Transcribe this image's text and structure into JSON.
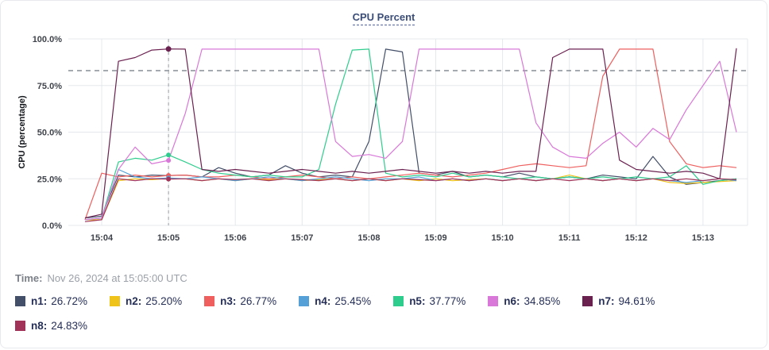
{
  "time": {
    "label": "Time:",
    "value": "Nov 26, 2024 at 15:05:00 UTC"
  },
  "legend": {
    "items": [
      {
        "label": "n1:",
        "value": "26.72%",
        "color": "#434e68"
      },
      {
        "label": "n2:",
        "value": "25.20%",
        "color": "#efc319"
      },
      {
        "label": "n3:",
        "value": "26.77%",
        "color": "#ee5f5e"
      },
      {
        "label": "n4:",
        "value": "25.45%",
        "color": "#55a1d7"
      },
      {
        "label": "n5:",
        "value": "37.77%",
        "color": "#2ecd8d"
      },
      {
        "label": "n6:",
        "value": "34.85%",
        "color": "#d978d8"
      },
      {
        "label": "n7:",
        "value": "94.61%",
        "color": "#6b2150"
      },
      {
        "label": "n8:",
        "value": "24.83%",
        "color": "#a13358"
      }
    ]
  },
  "chart_data": {
    "type": "line",
    "title": "CPU Percent",
    "xlabel": "",
    "ylabel": "CPU (percentage)",
    "ylim": [
      0,
      100
    ],
    "grid": true,
    "legend_position": "bottom",
    "yticks": [
      {
        "value": 0,
        "label": "0.0%"
      },
      {
        "value": 25,
        "label": "25.0%"
      },
      {
        "value": 50,
        "label": "50.0%"
      },
      {
        "value": 75,
        "label": "75.0%"
      },
      {
        "value": 100,
        "label": "100.0%"
      }
    ],
    "x_origin_label": "15:03:45",
    "sample_interval_seconds": 15,
    "x_domain_seconds": [
      -15,
      595
    ],
    "xticks": [
      {
        "t": 15,
        "label": "15:04"
      },
      {
        "t": 75,
        "label": "15:05"
      },
      {
        "t": 135,
        "label": "15:06"
      },
      {
        "t": 195,
        "label": "15:07"
      },
      {
        "t": 255,
        "label": "15:08"
      },
      {
        "t": 315,
        "label": "15:09"
      },
      {
        "t": 375,
        "label": "15:10"
      },
      {
        "t": 435,
        "label": "15:11"
      },
      {
        "t": 495,
        "label": "15:12"
      },
      {
        "t": 555,
        "label": "15:13"
      }
    ],
    "threshold_value": 83,
    "crosshair": {
      "t": 75,
      "index": 5,
      "label": "15:05:00"
    },
    "series": [
      {
        "name": "n1",
        "color": "#434e68",
        "values": [
          4,
          5,
          27,
          26,
          27,
          26.72,
          27,
          26,
          31,
          28,
          26,
          27,
          32,
          28,
          26,
          27,
          26,
          45,
          94.5,
          93,
          28,
          27,
          29,
          26,
          27,
          26,
          28,
          26,
          25,
          26,
          25,
          27,
          26,
          25,
          37,
          26,
          22,
          23,
          24,
          25
        ]
      },
      {
        "name": "n2",
        "color": "#efc319",
        "values": [
          3,
          3,
          24,
          25,
          24.5,
          25.2,
          25,
          24,
          25,
          24,
          25,
          24.5,
          25,
          24,
          24.5,
          25,
          24,
          25,
          24,
          25,
          24,
          25,
          24,
          24.5,
          25,
          24,
          25,
          24,
          25,
          27,
          25,
          24,
          25,
          24,
          25,
          23,
          22.5,
          23,
          23.5,
          24
        ]
      },
      {
        "name": "n3",
        "color": "#ee5f5e",
        "values": [
          3,
          28,
          26,
          27,
          26,
          26.77,
          27,
          26,
          26,
          27,
          26,
          25,
          26,
          27,
          26,
          25,
          26,
          25,
          26,
          27,
          28,
          27,
          26,
          27,
          28,
          30,
          32,
          33,
          32,
          31,
          32,
          80,
          94.5,
          94.5,
          94.5,
          45,
          33,
          31,
          32,
          31
        ]
      },
      {
        "name": "n4",
        "color": "#55a1d7",
        "values": [
          3,
          4,
          30,
          26,
          25,
          25.45,
          25,
          26,
          25,
          24,
          25,
          26,
          25,
          24,
          25,
          26,
          25,
          24,
          25,
          25,
          26,
          24,
          25,
          24,
          25,
          24,
          25,
          24,
          25,
          26,
          25,
          24,
          25,
          24,
          25,
          24,
          23,
          24,
          25,
          24
        ]
      },
      {
        "name": "n5",
        "color": "#2ecd8d",
        "values": [
          3,
          4,
          34,
          36,
          35,
          37.77,
          34,
          30,
          28,
          27,
          26,
          27,
          26,
          26,
          30,
          65,
          94,
          94.5,
          28,
          26,
          27,
          26,
          28,
          26,
          27,
          26,
          25,
          26,
          25,
          26,
          25,
          26,
          25,
          26,
          25,
          26,
          32,
          22,
          24,
          25
        ]
      },
      {
        "name": "n6",
        "color": "#d978d8",
        "values": [
          3,
          4,
          30,
          42,
          33,
          34.85,
          60,
          94.5,
          94.5,
          94.5,
          94.5,
          94.5,
          94.5,
          94.5,
          94.5,
          45,
          37,
          38,
          36,
          45,
          94.5,
          94.5,
          94.5,
          94.5,
          94.5,
          94.5,
          94.5,
          55,
          42,
          37,
          36,
          44,
          50,
          42,
          52,
          46,
          62,
          75,
          88,
          50
        ]
      },
      {
        "name": "n7",
        "color": "#6b2150",
        "values": [
          4,
          6,
          88,
          90,
          94,
          94.61,
          94.5,
          30,
          29,
          30,
          29,
          28,
          29,
          30,
          29,
          28,
          29,
          28,
          29,
          30,
          29,
          28,
          29,
          28,
          29,
          28,
          29,
          29,
          90,
          94.5,
          94.5,
          94.5,
          35,
          30,
          29,
          28,
          29,
          28,
          25,
          95
        ]
      },
      {
        "name": "n8",
        "color": "#a13358",
        "values": [
          2,
          3,
          25,
          24,
          25,
          24.83,
          25,
          24,
          25,
          24.5,
          25,
          24,
          25,
          24.5,
          24,
          25,
          24,
          25,
          24,
          25,
          24.5,
          24,
          25,
          24,
          25,
          24,
          25,
          24,
          25,
          24,
          25,
          24,
          25,
          24,
          25,
          24,
          25,
          24,
          25,
          24.5
        ]
      }
    ]
  }
}
